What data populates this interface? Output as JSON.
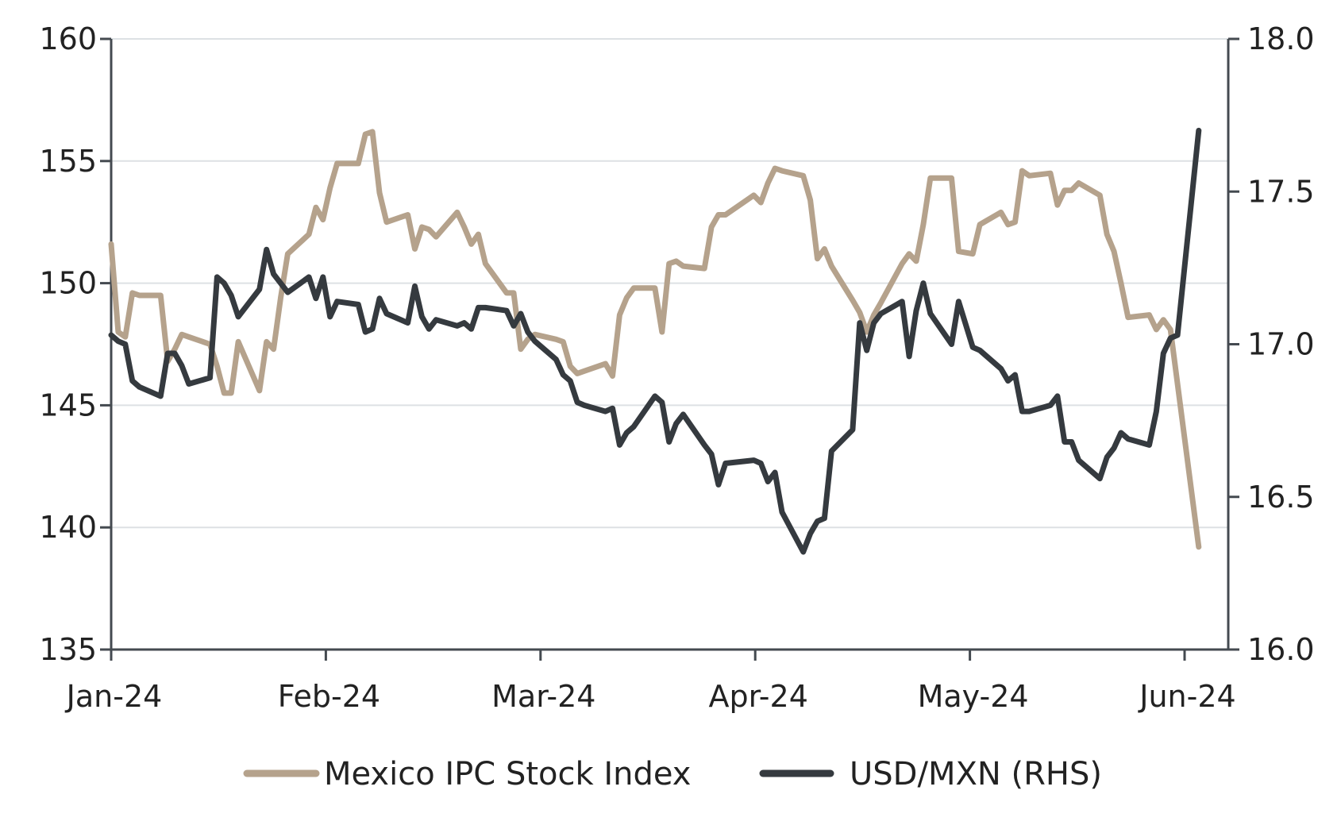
{
  "chart_data": {
    "type": "line",
    "title": "",
    "xlabel": "",
    "ylabel": "",
    "x_ticks": [
      "Jan-24",
      "Feb-24",
      "Mar-24",
      "Apr-24",
      "May-24",
      "Jun-24"
    ],
    "y_left": {
      "lim": [
        135,
        160
      ],
      "ticks": [
        "160",
        "155",
        "150",
        "145",
        "140",
        "135"
      ]
    },
    "y_right": {
      "lim": [
        16.0,
        18.0
      ],
      "ticks": [
        "18.0",
        "17.5",
        "17.0",
        "16.5",
        "16.0"
      ]
    },
    "grid": "horizontal",
    "legend_position": "bottom",
    "x_domain": [
      "2024-01-01",
      "2024-06-01"
    ],
    "series": [
      {
        "name": "Mexico IPC Stock Index",
        "axis": "left",
        "color": "#b5a28c",
        "points": [
          [
            "2024-01-01",
            151.6
          ],
          [
            "2024-01-02",
            148.0
          ],
          [
            "2024-01-03",
            147.8
          ],
          [
            "2024-01-04",
            149.6
          ],
          [
            "2024-01-05",
            149.5
          ],
          [
            "2024-01-08",
            149.5
          ],
          [
            "2024-01-09",
            146.8
          ],
          [
            "2024-01-10",
            147.3
          ],
          [
            "2024-01-11",
            147.9
          ],
          [
            "2024-01-12",
            147.8
          ],
          [
            "2024-01-15",
            147.5
          ],
          [
            "2024-01-16",
            146.6
          ],
          [
            "2024-01-17",
            145.5
          ],
          [
            "2024-01-18",
            145.5
          ],
          [
            "2024-01-19",
            147.6
          ],
          [
            "2024-01-22",
            145.6
          ],
          [
            "2024-01-23",
            147.6
          ],
          [
            "2024-01-24",
            147.3
          ],
          [
            "2024-01-25",
            149.4
          ],
          [
            "2024-01-26",
            151.2
          ],
          [
            "2024-01-29",
            152.0
          ],
          [
            "2024-01-30",
            153.1
          ],
          [
            "2024-01-31",
            152.6
          ],
          [
            "2024-02-01",
            153.9
          ],
          [
            "2024-02-02",
            154.9
          ],
          [
            "2024-02-05",
            154.9
          ],
          [
            "2024-02-06",
            156.1
          ],
          [
            "2024-02-07",
            156.2
          ],
          [
            "2024-02-08",
            153.7
          ],
          [
            "2024-02-09",
            152.5
          ],
          [
            "2024-02-12",
            152.8
          ],
          [
            "2024-02-13",
            151.4
          ],
          [
            "2024-02-14",
            152.3
          ],
          [
            "2024-02-15",
            152.2
          ],
          [
            "2024-02-16",
            151.9
          ],
          [
            "2024-02-19",
            152.9
          ],
          [
            "2024-02-20",
            152.3
          ],
          [
            "2024-02-21",
            151.6
          ],
          [
            "2024-02-22",
            152.0
          ],
          [
            "2024-02-23",
            150.8
          ],
          [
            "2024-02-26",
            149.6
          ],
          [
            "2024-02-27",
            149.6
          ],
          [
            "2024-02-28",
            147.3
          ],
          [
            "2024-02-29",
            147.7
          ],
          [
            "2024-03-01",
            147.9
          ],
          [
            "2024-03-04",
            147.7
          ],
          [
            "2024-03-05",
            147.6
          ],
          [
            "2024-03-06",
            146.6
          ],
          [
            "2024-03-07",
            146.3
          ],
          [
            "2024-03-08",
            146.4
          ],
          [
            "2024-03-11",
            146.7
          ],
          [
            "2024-03-12",
            146.2
          ],
          [
            "2024-03-13",
            148.7
          ],
          [
            "2024-03-14",
            149.4
          ],
          [
            "2024-03-15",
            149.8
          ],
          [
            "2024-03-18",
            149.8
          ],
          [
            "2024-03-19",
            148.0
          ],
          [
            "2024-03-20",
            150.8
          ],
          [
            "2024-03-21",
            150.9
          ],
          [
            "2024-03-22",
            150.7
          ],
          [
            "2024-03-25",
            150.6
          ],
          [
            "2024-03-26",
            152.3
          ],
          [
            "2024-03-27",
            152.8
          ],
          [
            "2024-03-28",
            152.8
          ],
          [
            "2024-04-01",
            153.6
          ],
          [
            "2024-04-02",
            153.3
          ],
          [
            "2024-04-03",
            154.1
          ],
          [
            "2024-04-04",
            154.7
          ],
          [
            "2024-04-05",
            154.6
          ],
          [
            "2024-04-08",
            154.4
          ],
          [
            "2024-04-09",
            153.4
          ],
          [
            "2024-04-10",
            151.0
          ],
          [
            "2024-04-11",
            151.4
          ],
          [
            "2024-04-12",
            150.7
          ],
          [
            "2024-04-15",
            149.3
          ],
          [
            "2024-04-16",
            148.8
          ],
          [
            "2024-04-17",
            148.0
          ],
          [
            "2024-04-18",
            148.7
          ],
          [
            "2024-04-19",
            149.2
          ],
          [
            "2024-04-22",
            150.8
          ],
          [
            "2024-04-23",
            151.2
          ],
          [
            "2024-04-24",
            150.9
          ],
          [
            "2024-04-25",
            152.4
          ],
          [
            "2024-04-26",
            154.3
          ],
          [
            "2024-04-29",
            154.3
          ],
          [
            "2024-04-30",
            151.3
          ],
          [
            "2024-05-02",
            151.2
          ],
          [
            "2024-05-03",
            152.4
          ],
          [
            "2024-05-06",
            152.9
          ],
          [
            "2024-05-07",
            152.4
          ],
          [
            "2024-05-08",
            152.5
          ],
          [
            "2024-05-09",
            154.6
          ],
          [
            "2024-05-10",
            154.4
          ],
          [
            "2024-05-13",
            154.5
          ],
          [
            "2024-05-14",
            153.2
          ],
          [
            "2024-05-15",
            153.8
          ],
          [
            "2024-05-16",
            153.8
          ],
          [
            "2024-05-17",
            154.1
          ],
          [
            "2024-05-20",
            153.6
          ],
          [
            "2024-05-21",
            152.0
          ],
          [
            "2024-05-22",
            151.3
          ],
          [
            "2024-05-23",
            150.0
          ],
          [
            "2024-05-24",
            148.6
          ],
          [
            "2024-05-27",
            148.7
          ],
          [
            "2024-05-28",
            148.1
          ],
          [
            "2024-05-29",
            148.5
          ],
          [
            "2024-05-30",
            148.1
          ],
          [
            "2024-06-03",
            139.2
          ]
        ]
      },
      {
        "name": "USD/MXN (RHS)",
        "axis": "right",
        "color": "#353a3f",
        "points": [
          [
            "2024-01-01",
            17.03
          ],
          [
            "2024-01-02",
            17.01
          ],
          [
            "2024-01-03",
            17.0
          ],
          [
            "2024-01-04",
            16.88
          ],
          [
            "2024-01-05",
            16.86
          ],
          [
            "2024-01-08",
            16.83
          ],
          [
            "2024-01-09",
            16.97
          ],
          [
            "2024-01-10",
            16.97
          ],
          [
            "2024-01-11",
            16.93
          ],
          [
            "2024-01-12",
            16.87
          ],
          [
            "2024-01-15",
            16.89
          ],
          [
            "2024-01-16",
            17.22
          ],
          [
            "2024-01-17",
            17.2
          ],
          [
            "2024-01-18",
            17.16
          ],
          [
            "2024-01-19",
            17.09
          ],
          [
            "2024-01-22",
            17.18
          ],
          [
            "2024-01-23",
            17.31
          ],
          [
            "2024-01-24",
            17.23
          ],
          [
            "2024-01-25",
            17.2
          ],
          [
            "2024-01-26",
            17.17
          ],
          [
            "2024-01-29",
            17.22
          ],
          [
            "2024-01-30",
            17.15
          ],
          [
            "2024-01-31",
            17.22
          ],
          [
            "2024-02-01",
            17.09
          ],
          [
            "2024-02-02",
            17.14
          ],
          [
            "2024-02-05",
            17.13
          ],
          [
            "2024-02-06",
            17.04
          ],
          [
            "2024-02-07",
            17.05
          ],
          [
            "2024-02-08",
            17.15
          ],
          [
            "2024-02-09",
            17.1
          ],
          [
            "2024-02-12",
            17.07
          ],
          [
            "2024-02-13",
            17.19
          ],
          [
            "2024-02-14",
            17.09
          ],
          [
            "2024-02-15",
            17.05
          ],
          [
            "2024-02-16",
            17.08
          ],
          [
            "2024-02-19",
            17.06
          ],
          [
            "2024-02-20",
            17.07
          ],
          [
            "2024-02-21",
            17.05
          ],
          [
            "2024-02-22",
            17.12
          ],
          [
            "2024-02-23",
            17.12
          ],
          [
            "2024-02-26",
            17.11
          ],
          [
            "2024-02-27",
            17.06
          ],
          [
            "2024-02-28",
            17.1
          ],
          [
            "2024-02-29",
            17.04
          ],
          [
            "2024-03-01",
            17.01
          ],
          [
            "2024-03-04",
            16.95
          ],
          [
            "2024-03-05",
            16.9
          ],
          [
            "2024-03-06",
            16.88
          ],
          [
            "2024-03-07",
            16.81
          ],
          [
            "2024-03-08",
            16.8
          ],
          [
            "2024-03-11",
            16.78
          ],
          [
            "2024-03-12",
            16.79
          ],
          [
            "2024-03-13",
            16.67
          ],
          [
            "2024-03-14",
            16.71
          ],
          [
            "2024-03-15",
            16.73
          ],
          [
            "2024-03-18",
            16.83
          ],
          [
            "2024-03-19",
            16.81
          ],
          [
            "2024-03-20",
            16.68
          ],
          [
            "2024-03-21",
            16.74
          ],
          [
            "2024-03-22",
            16.77
          ],
          [
            "2024-03-25",
            16.67
          ],
          [
            "2024-03-26",
            16.64
          ],
          [
            "2024-03-27",
            16.54
          ],
          [
            "2024-03-28",
            16.61
          ],
          [
            "2024-04-01",
            16.62
          ],
          [
            "2024-04-02",
            16.61
          ],
          [
            "2024-04-03",
            16.55
          ],
          [
            "2024-04-04",
            16.58
          ],
          [
            "2024-04-05",
            16.45
          ],
          [
            "2024-04-08",
            16.32
          ],
          [
            "2024-04-09",
            16.38
          ],
          [
            "2024-04-10",
            16.42
          ],
          [
            "2024-04-11",
            16.43
          ],
          [
            "2024-04-12",
            16.65
          ],
          [
            "2024-04-15",
            16.72
          ],
          [
            "2024-04-16",
            17.07
          ],
          [
            "2024-04-17",
            16.98
          ],
          [
            "2024-04-18",
            17.07
          ],
          [
            "2024-04-19",
            17.1
          ],
          [
            "2024-04-22",
            17.14
          ],
          [
            "2024-04-23",
            16.96
          ],
          [
            "2024-04-24",
            17.11
          ],
          [
            "2024-04-25",
            17.2
          ],
          [
            "2024-04-26",
            17.1
          ],
          [
            "2024-04-29",
            17.0
          ],
          [
            "2024-04-30",
            17.14
          ],
          [
            "2024-05-02",
            16.99
          ],
          [
            "2024-05-03",
            16.98
          ],
          [
            "2024-05-06",
            16.92
          ],
          [
            "2024-05-07",
            16.88
          ],
          [
            "2024-05-08",
            16.9
          ],
          [
            "2024-05-09",
            16.78
          ],
          [
            "2024-05-10",
            16.78
          ],
          [
            "2024-05-13",
            16.8
          ],
          [
            "2024-05-14",
            16.83
          ],
          [
            "2024-05-15",
            16.68
          ],
          [
            "2024-05-16",
            16.68
          ],
          [
            "2024-05-17",
            16.62
          ],
          [
            "2024-05-20",
            16.56
          ],
          [
            "2024-05-21",
            16.63
          ],
          [
            "2024-05-22",
            16.66
          ],
          [
            "2024-05-23",
            16.71
          ],
          [
            "2024-05-24",
            16.69
          ],
          [
            "2024-05-27",
            16.67
          ],
          [
            "2024-05-28",
            16.78
          ],
          [
            "2024-05-29",
            16.97
          ],
          [
            "2024-05-30",
            17.02
          ],
          [
            "2024-05-31",
            17.03
          ],
          [
            "2024-06-03",
            17.7
          ]
        ]
      }
    ]
  }
}
